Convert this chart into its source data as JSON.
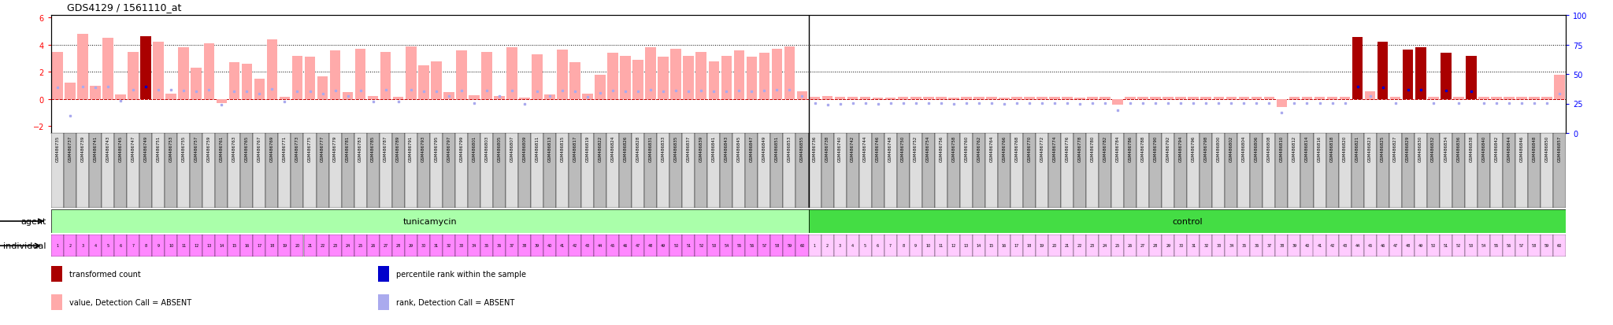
{
  "title": "GDS4129 / 1561110_at",
  "ylim_left": [
    -2.5,
    6.2
  ],
  "yticks_left": [
    -2,
    0,
    2,
    4,
    6
  ],
  "hline_dotted_values": [
    0,
    2,
    4
  ],
  "hline_red_value": 0,
  "background_color": "#ffffff",
  "bar_color_absent": "#ffaaaa",
  "bar_color_present": "#aa0000",
  "dot_color_rank_present": "#0000cc",
  "dot_color_rank_absent": "#aaaaee",
  "gsm_row_color_odd": "#dddddd",
  "gsm_row_color_even": "#bbbbbb",
  "agent_tunicamycin_color": "#aaffaa",
  "agent_control_color": "#44dd44",
  "individual_tunicamycin_color": "#ff88ff",
  "individual_control_color": "#ffccff",
  "tunicamycin_gsm": [
    "GSM486735",
    "GSM486737",
    "GSM486739",
    "GSM486741",
    "GSM486743",
    "GSM486745",
    "GSM486747",
    "GSM486749",
    "GSM486751",
    "GSM486753",
    "GSM486755",
    "GSM486757",
    "GSM486759",
    "GSM486761",
    "GSM486763",
    "GSM486765",
    "GSM486767",
    "GSM486769",
    "GSM486771",
    "GSM486773",
    "GSM486775",
    "GSM486777",
    "GSM486779",
    "GSM486781",
    "GSM486783",
    "GSM486785",
    "GSM486787",
    "GSM486789",
    "GSM486791",
    "GSM486793",
    "GSM486795",
    "GSM486797",
    "GSM486799",
    "GSM486801",
    "GSM486803",
    "GSM486805",
    "GSM486807",
    "GSM486809",
    "GSM486811",
    "GSM486813",
    "GSM486815",
    "GSM486817",
    "GSM486819",
    "GSM486822",
    "GSM486824",
    "GSM486826",
    "GSM486828",
    "GSM486831",
    "GSM486833",
    "GSM486835",
    "GSM486837",
    "GSM486839",
    "GSM486841",
    "GSM486843",
    "GSM486845",
    "GSM486847",
    "GSM486849",
    "GSM486851",
    "GSM486853",
    "GSM486855"
  ],
  "control_gsm": [
    "GSM486736",
    "GSM486738",
    "GSM486740",
    "GSM486742",
    "GSM486744",
    "GSM486746",
    "GSM486748",
    "GSM486750",
    "GSM486752",
    "GSM486754",
    "GSM486756",
    "GSM486758",
    "GSM486760",
    "GSM486762",
    "GSM486764",
    "GSM486766",
    "GSM486768",
    "GSM486770",
    "GSM486772",
    "GSM486774",
    "GSM486776",
    "GSM486778",
    "GSM486780",
    "GSM486782",
    "GSM486784",
    "GSM486786",
    "GSM486788",
    "GSM486790",
    "GSM486792",
    "GSM486794",
    "GSM486796",
    "GSM486798",
    "GSM486800",
    "GSM486802",
    "GSM486804",
    "GSM486806",
    "GSM486808",
    "GSM486810",
    "GSM486812",
    "GSM486814",
    "GSM486816",
    "GSM486818",
    "GSM486820",
    "GSM486821",
    "GSM486823",
    "GSM486825",
    "GSM486827",
    "GSM486829",
    "GSM486830",
    "GSM486832",
    "GSM486834",
    "GSM486836",
    "GSM486838",
    "GSM486840",
    "GSM486842",
    "GSM486844",
    "GSM486846",
    "GSM486848",
    "GSM486850",
    "GSM486857"
  ],
  "tunicamycin_vals": [
    3.5,
    1.2,
    4.8,
    1.0,
    4.5,
    0.35,
    3.5,
    4.65,
    4.2,
    0.4,
    3.85,
    2.3,
    4.1,
    -0.3,
    2.7,
    2.6,
    1.5,
    4.4,
    0.15,
    3.2,
    3.1,
    1.7,
    3.6,
    0.5,
    3.7,
    0.22,
    3.45,
    0.18,
    3.9,
    2.5,
    2.8,
    0.5,
    3.6,
    0.3,
    3.5,
    0.25,
    3.8,
    0.1,
    3.3,
    0.35,
    3.65,
    2.7,
    0.42,
    1.8,
    3.4,
    3.2,
    2.9,
    3.85,
    3.1,
    3.7,
    3.2,
    3.45,
    2.8,
    3.2,
    3.6,
    3.1,
    3.4,
    3.7,
    3.9,
    0.55
  ],
  "control_vals": [
    0.15,
    0.2,
    0.15,
    0.15,
    0.15,
    0.12,
    0.13,
    0.15,
    0.14,
    0.15,
    0.16,
    0.13,
    0.15,
    0.15,
    0.15,
    0.13,
    0.15,
    0.15,
    0.15,
    0.15,
    0.15,
    0.12,
    0.15,
    0.15,
    -0.4,
    0.15,
    0.15,
    0.15,
    0.15,
    0.15,
    0.15,
    0.15,
    0.15,
    0.15,
    0.15,
    0.15,
    0.15,
    -0.6,
    0.15,
    0.15,
    0.15,
    0.15,
    0.15,
    4.55,
    0.6,
    4.2,
    0.15,
    3.65,
    3.8,
    0.15,
    3.4,
    0.15,
    3.2,
    0.15,
    0.15,
    0.15,
    0.15,
    0.15,
    0.15,
    1.8
  ],
  "tunicamycin_absent": [
    true,
    true,
    true,
    true,
    true,
    true,
    true,
    false,
    true,
    true,
    true,
    true,
    true,
    true,
    true,
    true,
    true,
    true,
    true,
    true,
    true,
    true,
    true,
    true,
    true,
    true,
    true,
    true,
    true,
    true,
    true,
    true,
    true,
    true,
    true,
    true,
    true,
    true,
    true,
    true,
    true,
    true,
    true,
    true,
    true,
    true,
    true,
    true,
    true,
    true,
    true,
    true,
    true,
    true,
    true,
    true,
    true,
    true,
    true,
    true
  ],
  "control_absent": [
    true,
    true,
    true,
    true,
    true,
    true,
    true,
    true,
    true,
    true,
    true,
    true,
    true,
    true,
    true,
    true,
    true,
    true,
    true,
    true,
    true,
    true,
    true,
    true,
    true,
    true,
    true,
    true,
    true,
    true,
    true,
    true,
    true,
    true,
    true,
    true,
    true,
    true,
    true,
    true,
    true,
    true,
    true,
    false,
    true,
    false,
    true,
    false,
    false,
    true,
    false,
    true,
    false,
    true,
    true,
    true,
    true,
    true,
    true,
    true
  ],
  "tunicamycin_rank": [
    0.85,
    -1.2,
    0.9,
    0.85,
    0.9,
    -0.15,
    0.7,
    0.9,
    0.7,
    0.7,
    0.65,
    0.55,
    0.7,
    -0.4,
    0.55,
    0.55,
    0.4,
    0.75,
    -0.2,
    0.6,
    0.6,
    0.4,
    0.65,
    0.25,
    0.65,
    -0.2,
    0.7,
    -0.2,
    0.7,
    0.55,
    0.6,
    0.25,
    0.65,
    -0.3,
    0.65,
    0.2,
    0.65,
    -0.35,
    0.6,
    0.2,
    0.65,
    0.6,
    0.15,
    0.45,
    0.65,
    0.6,
    0.55,
    0.7,
    0.6,
    0.65,
    0.6,
    0.65,
    0.55,
    0.6,
    0.65,
    0.6,
    0.65,
    0.7,
    0.7,
    0.25
  ],
  "control_rank": [
    -0.3,
    -0.4,
    -0.35,
    -0.3,
    -0.3,
    -0.35,
    -0.3,
    -0.3,
    -0.3,
    -0.3,
    -0.3,
    -0.35,
    -0.3,
    -0.3,
    -0.3,
    -0.35,
    -0.3,
    -0.3,
    -0.3,
    -0.3,
    -0.3,
    -0.35,
    -0.3,
    -0.3,
    -0.8,
    -0.3,
    -0.3,
    -0.3,
    -0.3,
    -0.3,
    -0.3,
    -0.3,
    -0.3,
    -0.3,
    -0.3,
    -0.3,
    -0.3,
    -1.0,
    -0.3,
    -0.3,
    -0.3,
    -0.3,
    -0.3,
    0.9,
    0.25,
    0.85,
    -0.3,
    0.7,
    0.7,
    -0.3,
    0.65,
    -0.3,
    0.6,
    -0.3,
    -0.3,
    -0.3,
    -0.3,
    -0.3,
    -0.3,
    0.4
  ],
  "legend_items": [
    {
      "label": "transformed count",
      "color": "#aa0000"
    },
    {
      "label": "percentile rank within the sample",
      "color": "#0000cc"
    },
    {
      "label": "value, Detection Call = ABSENT",
      "color": "#ffaaaa"
    },
    {
      "label": "rank, Detection Call = ABSENT",
      "color": "#aaaaee"
    }
  ],
  "n_tunicamycin": 60,
  "n_control": 60,
  "individual_numbers_tuni": [
    1,
    2,
    3,
    4,
    5,
    6,
    7,
    8,
    9,
    10,
    11,
    12,
    13,
    14,
    15,
    16,
    17,
    18,
    19,
    20,
    21,
    22,
    23,
    24,
    25,
    26,
    27,
    28,
    29,
    30,
    31,
    32,
    33,
    34,
    35,
    36,
    37,
    38,
    39,
    40,
    41,
    42,
    43,
    44,
    45,
    46,
    47,
    48,
    49,
    50,
    51,
    52,
    53,
    54,
    55,
    56,
    57,
    58,
    59,
    60
  ],
  "individual_numbers_ctrl": [
    1,
    2,
    3,
    4,
    5,
    6,
    7,
    8,
    9,
    10,
    11,
    12,
    13,
    14,
    15,
    16,
    17,
    18,
    19,
    20,
    21,
    22,
    23,
    24,
    25,
    26,
    27,
    28,
    29,
    30,
    31,
    32,
    33,
    34,
    35,
    36,
    37,
    38,
    39,
    40,
    41,
    42,
    43,
    44,
    45,
    46,
    47,
    48,
    49,
    50,
    51,
    52,
    53,
    54,
    55,
    56,
    57,
    58,
    59,
    60
  ]
}
